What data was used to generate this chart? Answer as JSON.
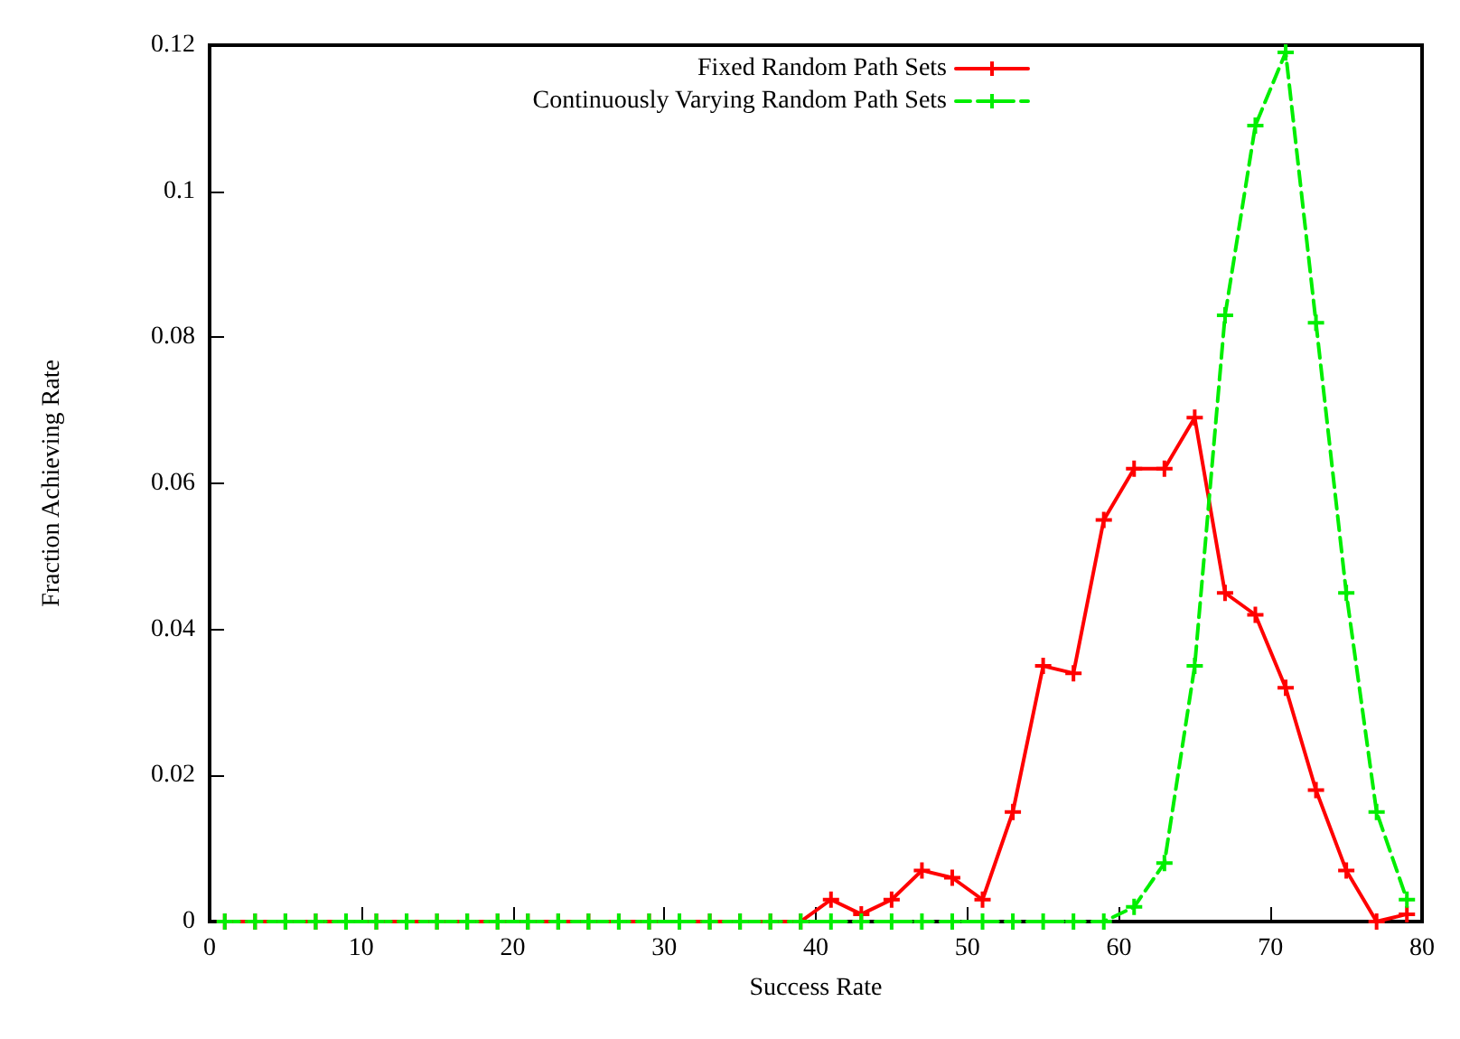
{
  "chart_data": {
    "type": "line",
    "xlabel": "Success Rate",
    "ylabel": "Fraction Achieving Rate",
    "x": [
      1,
      3,
      5,
      7,
      9,
      11,
      13,
      15,
      17,
      19,
      21,
      23,
      25,
      27,
      29,
      31,
      33,
      35,
      37,
      39,
      41,
      43,
      45,
      47,
      49,
      51,
      53,
      55,
      57,
      59,
      61,
      63,
      65,
      67,
      69,
      71,
      73,
      75,
      77,
      79
    ],
    "series": [
      {
        "name": "Fixed Random Path Sets",
        "color": "#ff0000",
        "marker": "cross",
        "line_style": "solid",
        "values": [
          0,
          0,
          0,
          0,
          0,
          0,
          0,
          0,
          0,
          0,
          0,
          0,
          0,
          0,
          0,
          0,
          0,
          0,
          0,
          0,
          0.003,
          0.001,
          0.003,
          0.007,
          0.006,
          0.003,
          0.015,
          0.035,
          0.034,
          0.055,
          0.062,
          0.062,
          0.069,
          0.045,
          0.042,
          0.032,
          0.018,
          0.007,
          0,
          0.001
        ]
      },
      {
        "name": "Continuously Varying Random Path Sets",
        "color": "#00ee00",
        "marker": "cross",
        "line_style": "dashed",
        "values": [
          0,
          0,
          0,
          0,
          0,
          0,
          0,
          0,
          0,
          0,
          0,
          0,
          0,
          0,
          0,
          0,
          0,
          0,
          0,
          0,
          0,
          0,
          0,
          0,
          0,
          0,
          0,
          0,
          0,
          0,
          0.002,
          0.008,
          0.035,
          0.083,
          0.109,
          0.119,
          0.082,
          0.045,
          0.015,
          0.003
        ]
      }
    ],
    "xlim": [
      0,
      80
    ],
    "xticks": [
      0,
      10,
      20,
      30,
      40,
      50,
      60,
      70,
      80
    ],
    "ylim": [
      0,
      0.12
    ],
    "yticks": [
      0,
      0.02,
      0.04,
      0.06,
      0.08,
      0.1,
      0.12
    ],
    "grid": false,
    "legend": "top right"
  }
}
